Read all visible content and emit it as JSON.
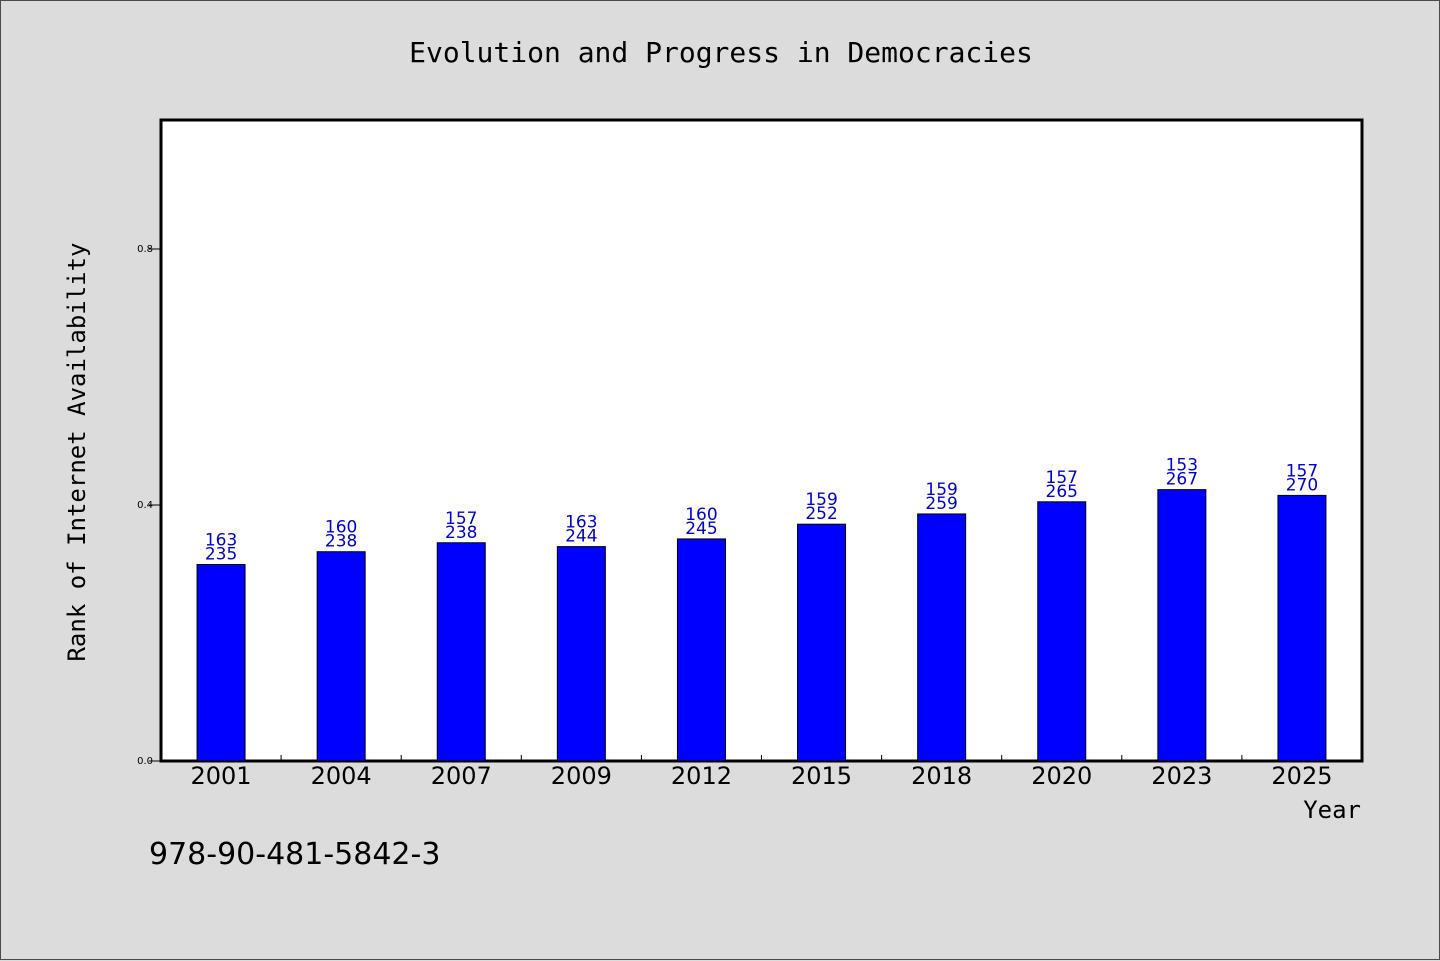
{
  "chart_data": {
    "type": "bar",
    "title": "Evolution and Progress in Democracies",
    "xlabel": "Year",
    "ylabel": "Rank of Internet Availability",
    "categories": [
      "2001",
      "2004",
      "2007",
      "2009",
      "2012",
      "2015",
      "2018",
      "2020",
      "2023",
      "2025"
    ],
    "values": [
      0.307,
      0.327,
      0.341,
      0.335,
      0.347,
      0.37,
      0.386,
      0.405,
      0.424,
      0.415
    ],
    "bar_labels_top": [
      "163",
      "160",
      "157",
      "163",
      "160",
      "159",
      "159",
      "157",
      "153",
      "157"
    ],
    "bar_labels_bottom": [
      "235",
      "238",
      "238",
      "244",
      "245",
      "252",
      "259",
      "265",
      "267",
      "270"
    ],
    "ylim": [
      0,
      1.0
    ],
    "yticks": [
      {
        "value": 0.0,
        "label": "0.0"
      },
      {
        "value": 0.4,
        "label": "0.4"
      },
      {
        "value": 0.8,
        "label": "0.8"
      }
    ],
    "grid": false,
    "bar_color": "#0000ff",
    "label_color": "#0000cc"
  },
  "footer_text": "978-90-481-5842-3"
}
